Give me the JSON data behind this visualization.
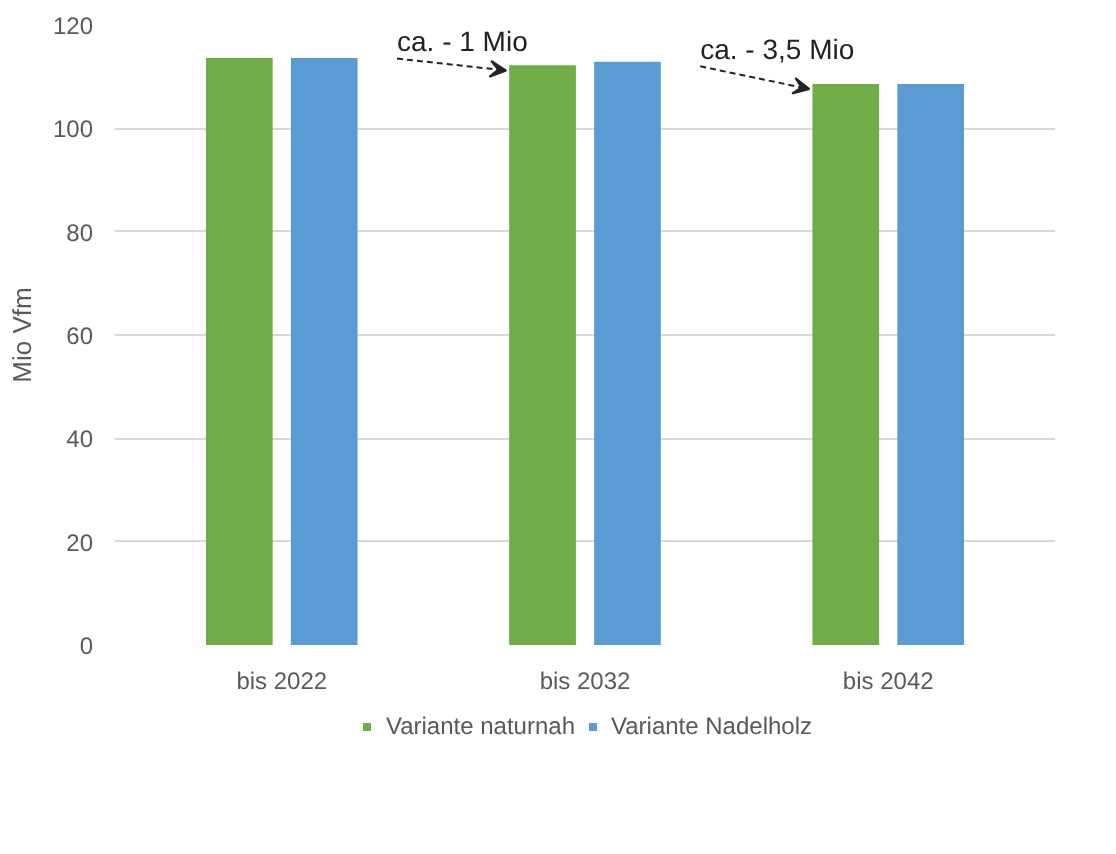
{
  "chart_data": {
    "type": "bar",
    "ylabel": "Mio Vfm",
    "categories": [
      "bis 2022",
      "bis 2032",
      "bis 2042"
    ],
    "series": [
      {
        "name": "Variante naturnah",
        "color": "#70ad47",
        "values": [
          113.6,
          112.2,
          108.6
        ]
      },
      {
        "name": "Variante Nadelholz",
        "color": "#5b9bd5",
        "values": [
          113.6,
          112.9,
          108.6
        ]
      }
    ],
    "ylim": [
      0,
      120
    ],
    "yticks": [
      0,
      20,
      40,
      60,
      80,
      100,
      120
    ],
    "grid": "y",
    "legend": "bottom",
    "annotations": [
      "ca. - 1 Mio",
      "ca. - 3,5 Mio"
    ]
  }
}
